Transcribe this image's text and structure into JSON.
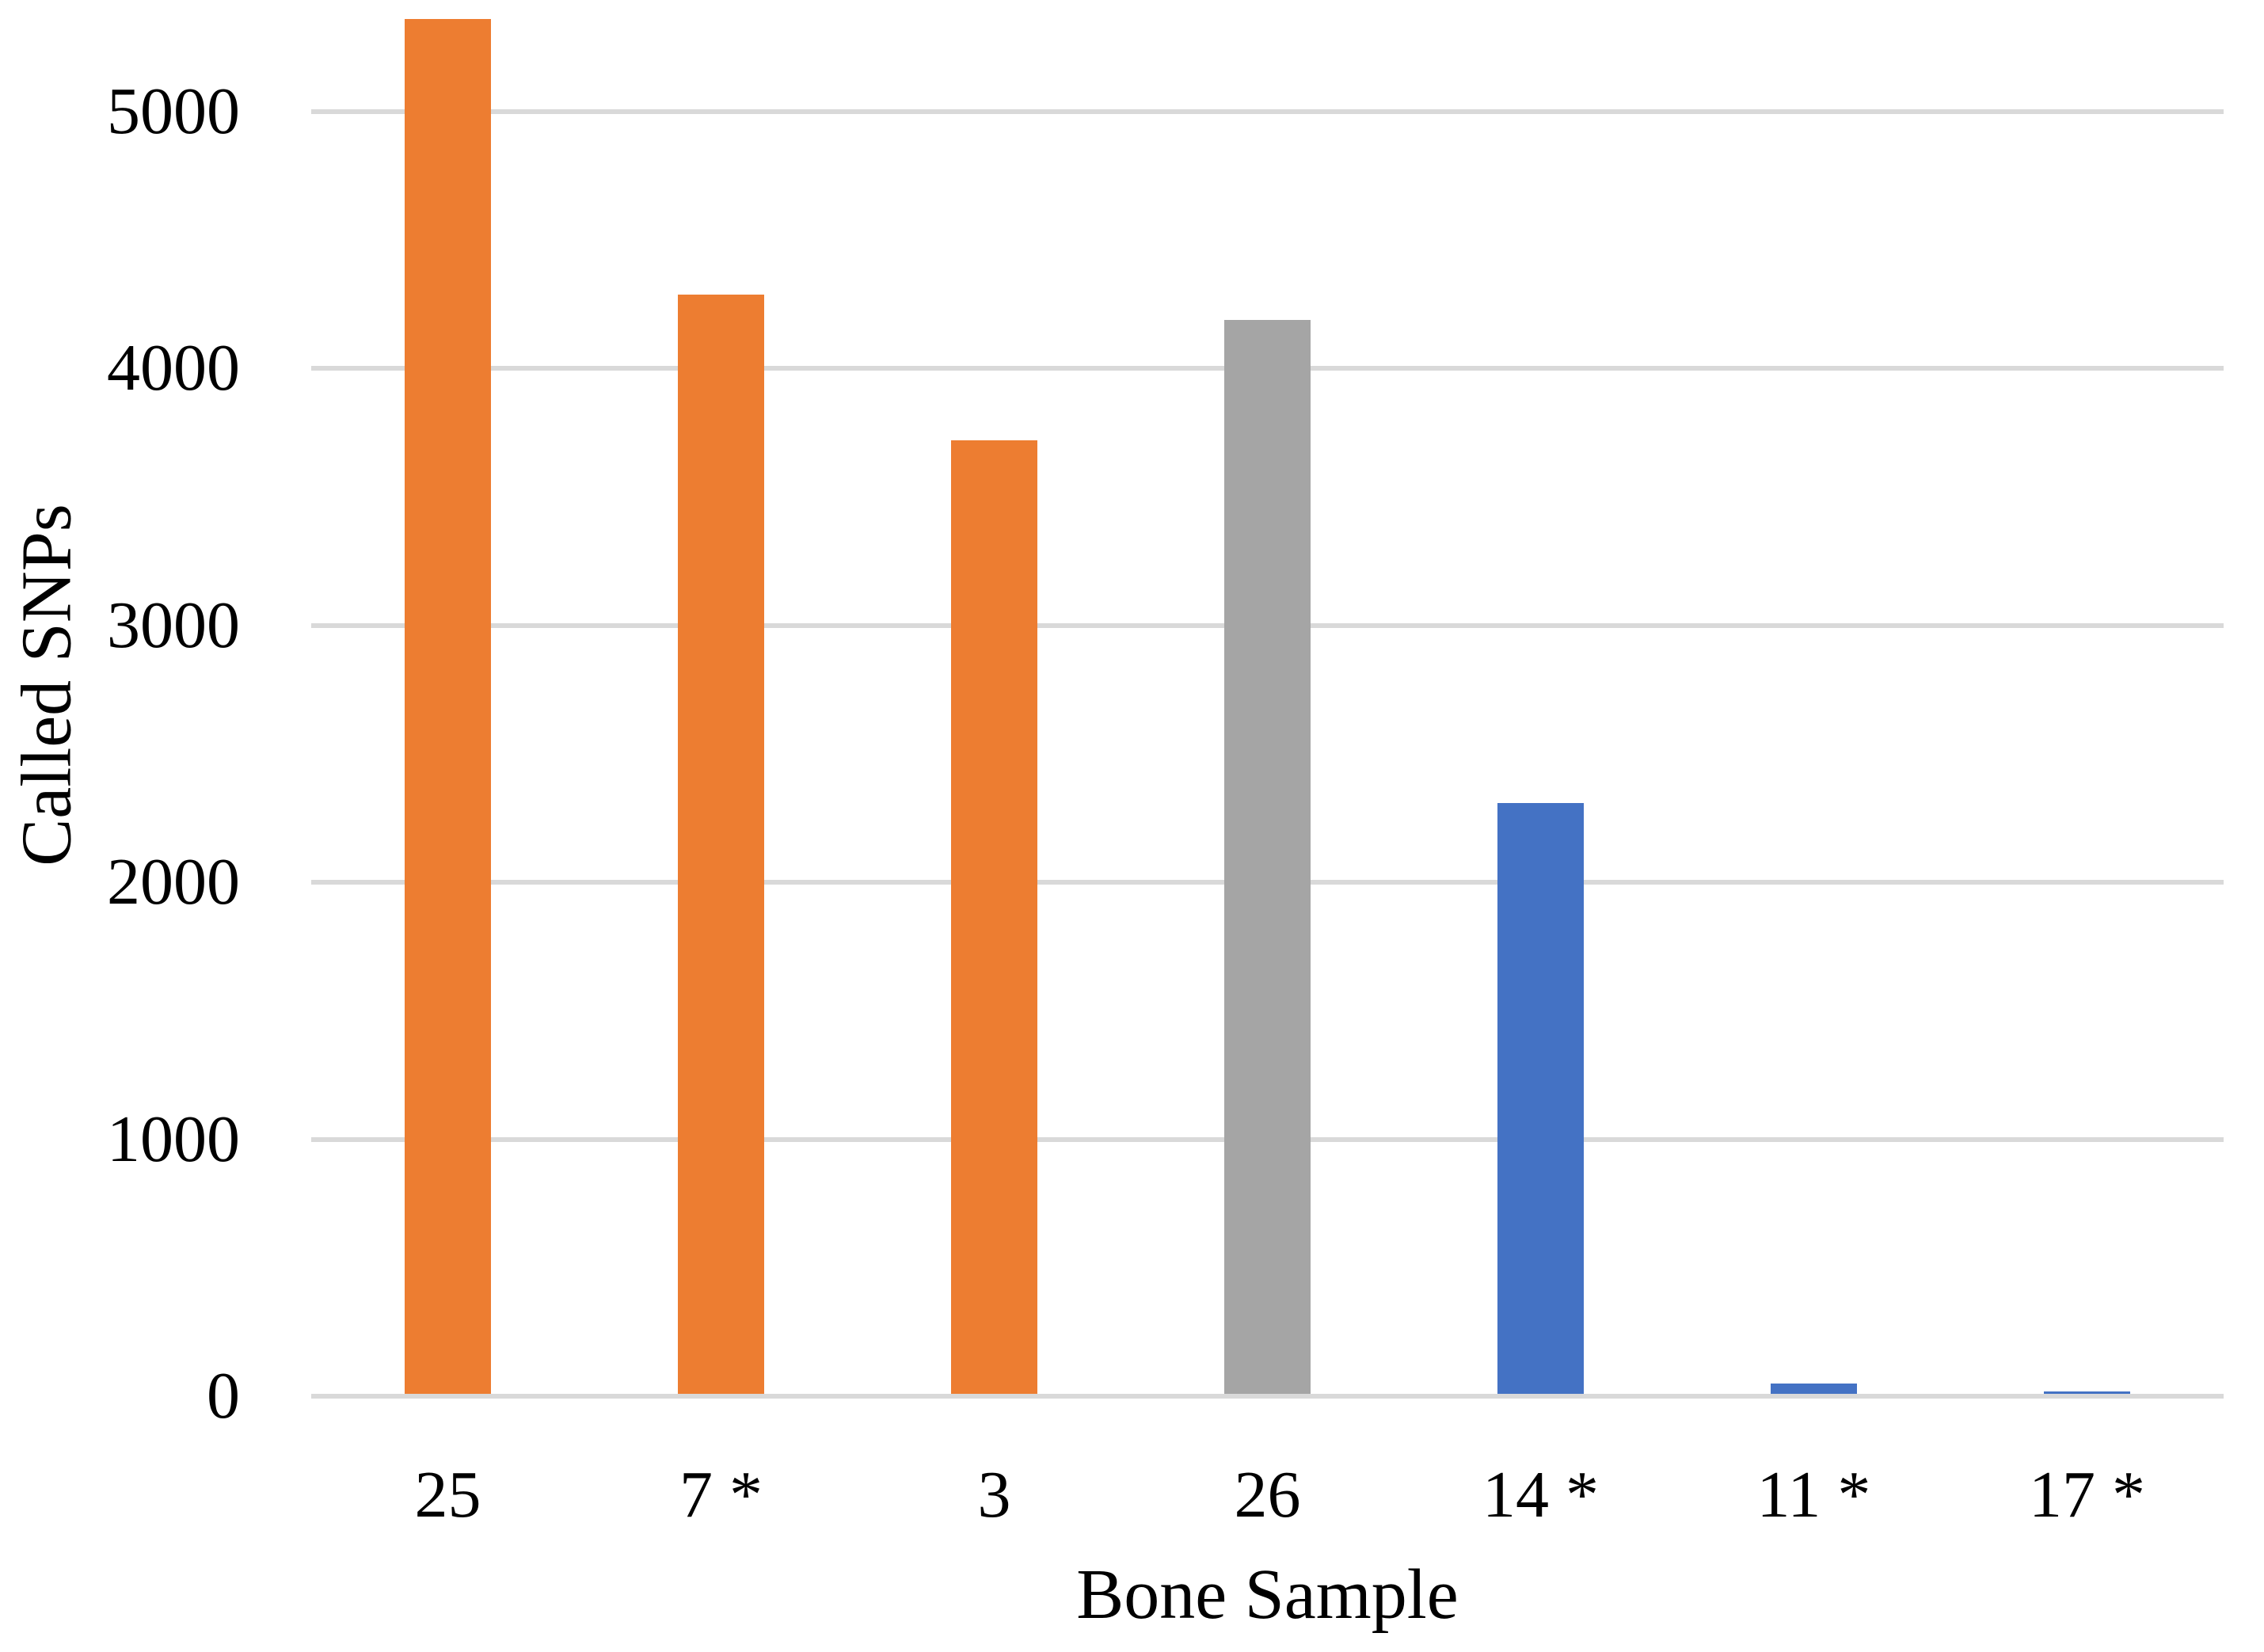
{
  "figure": {
    "background_color": "#FFFFFF",
    "gridline_color": "#D9D9D9",
    "axis_line_color": "#D9D9D9",
    "text_color": "#000000"
  },
  "chart_data": {
    "type": "bar",
    "title": "",
    "xlabel": "Bone Sample",
    "ylabel": "Called SNPs",
    "categories": [
      "25",
      "7 *",
      "3",
      "26",
      "14 *",
      "11 *",
      "17 *"
    ],
    "values": [
      5350,
      4280,
      3710,
      4180,
      2300,
      40,
      10
    ],
    "bar_colors": [
      "#ED7D31",
      "#ED7D31",
      "#ED7D31",
      "#A5A5A5",
      "#4472C4",
      "#4472C4",
      "#4472C4"
    ],
    "series_note": "single series; orange = samples 25/7*/3, gray = sample 26, blue = samples 14*/11*/17*",
    "y_ticks": [
      0,
      1000,
      2000,
      3000,
      4000,
      5000
    ],
    "y_tick_labels": [
      "0",
      "1000",
      "2000",
      "3000",
      "4000",
      "5000"
    ],
    "ylim": [
      0,
      5435
    ],
    "xlim_slots": 7,
    "grid": "horizontal",
    "legend": "none",
    "top_bar_clipped": "first bar extends above the highest (5000) gridline near the top edge of the figure"
  }
}
